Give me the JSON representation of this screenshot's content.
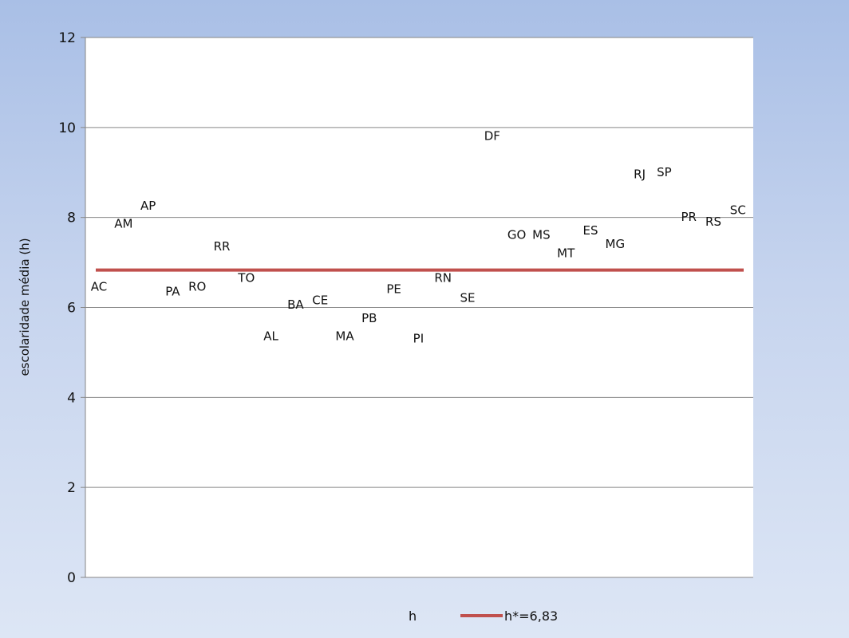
{
  "chart_data": {
    "type": "scatter",
    "title": "",
    "xlabel": "",
    "ylabel": "escolaridade média (h)",
    "ylim": [
      0,
      12
    ],
    "yticks": [
      0,
      2,
      4,
      6,
      8,
      10,
      12
    ],
    "grid": true,
    "legend_position": "bottom",
    "marker": "text-label",
    "points": [
      {
        "label": "AC",
        "x": 1,
        "y": 6.45
      },
      {
        "label": "AM",
        "x": 2,
        "y": 7.85
      },
      {
        "label": "AP",
        "x": 3,
        "y": 8.25
      },
      {
        "label": "PA",
        "x": 4,
        "y": 6.35
      },
      {
        "label": "RO",
        "x": 5,
        "y": 6.45
      },
      {
        "label": "RR",
        "x": 6,
        "y": 7.35
      },
      {
        "label": "TO",
        "x": 7,
        "y": 6.65
      },
      {
        "label": "AL",
        "x": 8,
        "y": 5.35
      },
      {
        "label": "BA",
        "x": 9,
        "y": 6.05
      },
      {
        "label": "CE",
        "x": 10,
        "y": 6.15
      },
      {
        "label": "MA",
        "x": 11,
        "y": 5.35
      },
      {
        "label": "PB",
        "x": 12,
        "y": 5.75
      },
      {
        "label": "PE",
        "x": 13,
        "y": 6.4
      },
      {
        "label": "PI",
        "x": 14,
        "y": 5.3
      },
      {
        "label": "RN",
        "x": 15,
        "y": 6.65
      },
      {
        "label": "SE",
        "x": 16,
        "y": 6.2
      },
      {
        "label": "DF",
        "x": 17,
        "y": 9.8
      },
      {
        "label": "GO",
        "x": 18,
        "y": 7.6
      },
      {
        "label": "MS",
        "x": 19,
        "y": 7.6
      },
      {
        "label": "MT",
        "x": 20,
        "y": 7.2
      },
      {
        "label": "ES",
        "x": 21,
        "y": 7.7
      },
      {
        "label": "MG",
        "x": 22,
        "y": 7.4
      },
      {
        "label": "RJ",
        "x": 23,
        "y": 8.95
      },
      {
        "label": "SP",
        "x": 24,
        "y": 9.0
      },
      {
        "label": "PR",
        "x": 25,
        "y": 8.0
      },
      {
        "label": "RS",
        "x": 26,
        "y": 7.9
      },
      {
        "label": "SC",
        "x": 27,
        "y": 8.15
      }
    ],
    "reference_line": {
      "name": "h*=6,83",
      "y": 6.83,
      "color": "#c0504d"
    },
    "legend": [
      {
        "name": "h",
        "symbol": "none"
      },
      {
        "name": "h*=6,83",
        "symbol": "line",
        "color": "#c0504d"
      }
    ]
  }
}
